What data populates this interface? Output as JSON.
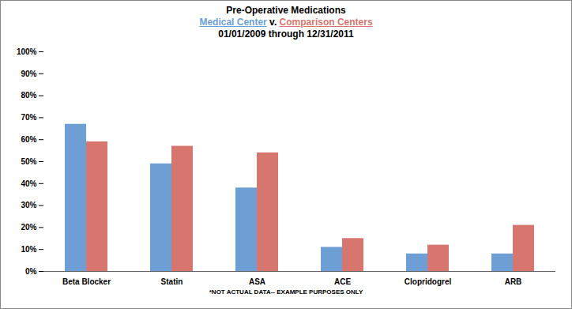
{
  "chart_data": {
    "type": "bar",
    "title": "Pre-Operative Medications",
    "subtitle": "01/01/2009 through 12/31/2011",
    "series_separator": "v.",
    "note": "*NOT ACTUAL DATA-- EXAMPLE PURPOSES ONLY",
    "categories": [
      "Beta Blocker",
      "Statin",
      "ASA",
      "ACE",
      "Clopridogrel",
      "ARB"
    ],
    "series": [
      {
        "name": "Medical Center",
        "color": "#6d9fd5",
        "values": [
          67,
          49,
          38,
          11,
          8,
          8
        ]
      },
      {
        "name": "Comparison Centers",
        "color": "#d6766f",
        "values": [
          59,
          57,
          54,
          15,
          12,
          21
        ]
      }
    ],
    "ylim": [
      0,
      100
    ],
    "yticks": [
      {
        "value": 0,
        "label": "0%"
      },
      {
        "value": 10,
        "label": "10%"
      },
      {
        "value": 20,
        "label": "20%"
      },
      {
        "value": 30,
        "label": "30%"
      },
      {
        "value": 40,
        "label": "40%"
      },
      {
        "value": 50,
        "label": "50%"
      },
      {
        "value": 60,
        "label": "60%"
      },
      {
        "value": 70,
        "label": "70%"
      },
      {
        "value": 80,
        "label": "80%"
      },
      {
        "value": 90,
        "label": "90%"
      },
      {
        "value": 100,
        "label": "100%"
      }
    ],
    "grid": false,
    "legend": "top"
  }
}
